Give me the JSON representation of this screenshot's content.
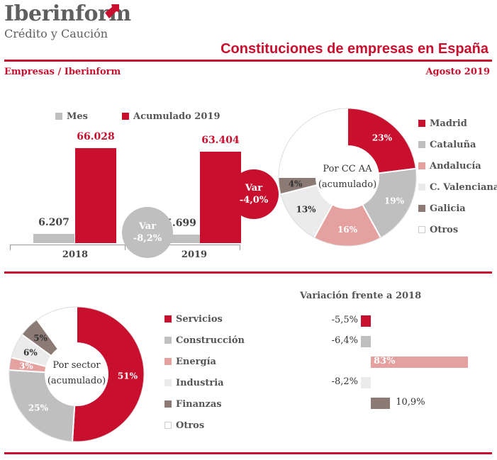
{
  "header": {
    "logo_title": "Iberinform",
    "logo_subtitle": "Crédito y Caución",
    "page_title": "Constituciones de empresas en España",
    "left_subtitle": "Empresas / Iberinform",
    "right_subtitle": "Agosto 2019"
  },
  "colors": {
    "red": "#c8102e",
    "gray": "#bfbfbf",
    "pink": "#e5a0a0",
    "light": "#ebebeb",
    "brown": "#8c7b75",
    "white": "#ffffff"
  },
  "chart_data": [
    {
      "type": "bar",
      "categories": [
        "2018",
        "2019"
      ],
      "series": [
        {
          "name": "Mes",
          "values": [
            6207,
            5699
          ],
          "labels": [
            "6.207",
            "5.699"
          ]
        },
        {
          "name": "Acumulado 2019",
          "values": [
            66028,
            63404
          ],
          "labels": [
            "66.028",
            "63.404"
          ]
        }
      ],
      "annotations": [
        {
          "line1": "Var",
          "line2": "-8,2%"
        },
        {
          "line1": "Var",
          "line2": "-4,0%"
        }
      ]
    },
    {
      "type": "pie",
      "center_line1": "Por CC AA",
      "center_line2": "(acumulado)",
      "slices": [
        {
          "name": "Madrid",
          "value": 23,
          "label": "23%"
        },
        {
          "name": "Cataluña",
          "value": 19,
          "label": "19%"
        },
        {
          "name": "Andalucía",
          "value": 16,
          "label": "16%"
        },
        {
          "name": "C. Valenciana",
          "value": 13,
          "label": "13%"
        },
        {
          "name": "Galicia",
          "value": 4,
          "label": "4%"
        },
        {
          "name": "Otros",
          "value": 25,
          "label": ""
        }
      ]
    },
    {
      "type": "pie",
      "center_line1": "Por sector",
      "center_line2": "(acumulado)",
      "slices": [
        {
          "name": "Servicios",
          "value": 51,
          "label": "51%"
        },
        {
          "name": "Construcción",
          "value": 25,
          "label": "25%"
        },
        {
          "name": "Energía",
          "value": 3,
          "label": "3%"
        },
        {
          "name": "Industria",
          "value": 6,
          "label": "6%"
        },
        {
          "name": "Finanzas",
          "value": 5,
          "label": "5%"
        },
        {
          "name": "Otros",
          "value": 10,
          "label": ""
        }
      ]
    },
    {
      "type": "bar",
      "orientation": "horizontal",
      "title": "Variación frente a 2018",
      "categories": [
        "Servicios",
        "Construcción",
        "Energía",
        "Industria",
        "Finanzas"
      ],
      "values": [
        -5.5,
        -6.4,
        83,
        -8.2,
        10.9
      ],
      "labels": [
        "-5,5%",
        "-6,4%",
        "83%",
        "-8,2%",
        "10,9%"
      ]
    }
  ]
}
